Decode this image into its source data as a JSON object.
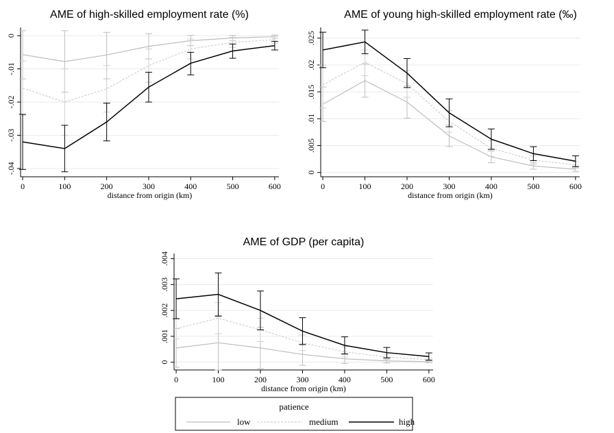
{
  "chart_data": [
    {
      "type": "line",
      "title": "AME of high-skilled employment rate (%)",
      "xlabel": "distance from origin (km)",
      "ylabel": "",
      "x": [
        0,
        100,
        200,
        300,
        400,
        500,
        600
      ],
      "xticks": [
        "0",
        "100",
        "200",
        "300",
        "400",
        "500",
        "600"
      ],
      "xlim": [
        -5,
        610
      ],
      "ylim": [
        -0.0425,
        0.0025
      ],
      "yticks": [
        0,
        -0.01,
        -0.02,
        -0.03,
        -0.04
      ],
      "ytick_labels": [
        "0",
        "-.01",
        "-.02",
        "-.03",
        "-.04"
      ],
      "grid": true,
      "series": [
        {
          "name": "low",
          "values": [
            -0.0057,
            -0.0078,
            -0.0058,
            -0.0032,
            -0.0015,
            -0.0007,
            -0.0003
          ],
          "ci_low": [
            -0.013,
            -0.017,
            -0.013,
            -0.007,
            -0.003,
            -0.0015,
            -0.0008
          ],
          "ci_high": [
            0.0015,
            0.0015,
            0.001,
            0.0006,
            0.0001,
            0.0001,
            0.0002
          ]
        },
        {
          "name": "medium",
          "values": [
            -0.0158,
            -0.02,
            -0.016,
            -0.009,
            -0.004,
            -0.002,
            -0.0012
          ],
          "ci_low": [
            -0.024,
            -0.03,
            -0.023,
            -0.014,
            -0.007,
            -0.0035,
            -0.0022
          ],
          "ci_high": [
            -0.0076,
            -0.01,
            -0.009,
            -0.004,
            -0.001,
            -0.0005,
            -0.0002
          ]
        },
        {
          "name": "high",
          "values": [
            -0.032,
            -0.034,
            -0.026,
            -0.0155,
            -0.0083,
            -0.0046,
            -0.003
          ],
          "ci_low": [
            -0.0403,
            -0.041,
            -0.0317,
            -0.02,
            -0.0118,
            -0.0068,
            -0.0043
          ],
          "ci_high": [
            -0.0237,
            -0.027,
            -0.0203,
            -0.011,
            -0.005,
            -0.0025,
            -0.0017
          ]
        }
      ]
    },
    {
      "type": "line",
      "title": "AME of young high-skilled employment rate (‰)",
      "xlabel": "distance from origin (km)",
      "ylabel": "",
      "x": [
        0,
        100,
        200,
        300,
        400,
        500,
        600
      ],
      "xticks": [
        "0",
        "100",
        "200",
        "300",
        "400",
        "500",
        "600"
      ],
      "xlim": [
        -5,
        610
      ],
      "ylim": [
        -0.0008,
        0.027
      ],
      "yticks": [
        0,
        0.005,
        0.01,
        0.015,
        0.02,
        0.025
      ],
      "ytick_labels": [
        "0",
        ".005",
        ".01",
        ".015",
        ".02",
        ".025"
      ],
      "grid": true,
      "series": [
        {
          "name": "low",
          "values": [
            0.0127,
            0.0171,
            0.0131,
            0.0068,
            0.0029,
            0.0012,
            0.0006
          ],
          "ci_low": [
            0.0095,
            0.014,
            0.0101,
            0.0048,
            0.0018,
            0.0006,
            0.0002
          ],
          "ci_high": [
            0.0159,
            0.0202,
            0.0161,
            0.0088,
            0.004,
            0.0018,
            0.001
          ]
        },
        {
          "name": "medium",
          "values": [
            0.0163,
            0.0205,
            0.0165,
            0.0095,
            0.0045,
            0.0023,
            0.0014
          ],
          "ci_low": [
            0.012,
            0.018,
            0.014,
            0.0075,
            0.003,
            0.0015,
            0.0008
          ],
          "ci_high": [
            0.02,
            0.0228,
            0.019,
            0.0115,
            0.006,
            0.0031,
            0.002
          ]
        },
        {
          "name": "high",
          "values": [
            0.0228,
            0.0243,
            0.0185,
            0.0111,
            0.0062,
            0.0035,
            0.0021
          ],
          "ci_low": [
            0.0195,
            0.0221,
            0.0158,
            0.0085,
            0.0043,
            0.0022,
            0.0011
          ],
          "ci_high": [
            0.0261,
            0.0265,
            0.0212,
            0.0137,
            0.0081,
            0.0048,
            0.0031
          ]
        }
      ]
    },
    {
      "type": "line",
      "title": "AME of GDP (per capita)",
      "xlabel": "distance from origin (km)",
      "ylabel": "",
      "x": [
        0,
        100,
        200,
        300,
        400,
        500,
        600
      ],
      "xticks": [
        "0",
        "100",
        "200",
        "300",
        "400",
        "500",
        "600"
      ],
      "xlim": [
        -5,
        610
      ],
      "ylim": [
        -0.0003,
        0.0042
      ],
      "yticks": [
        0,
        0.001,
        0.002,
        0.003,
        0.004
      ],
      "ytick_labels": [
        "0",
        ".001",
        ".002",
        ".003",
        ".004"
      ],
      "grid": true,
      "series": [
        {
          "name": "low",
          "values": [
            0.00055,
            0.00075,
            0.00055,
            0.0003,
            0.00013,
            5e-05,
            2e-05
          ],
          "ci_low": [
            -0.0002,
            -0.0003,
            -0.00025,
            -0.00012,
            -5e-05,
            -3e-05,
            -2e-05
          ],
          "ci_high": [
            0.0013,
            0.0018,
            0.00135,
            0.0007,
            0.0003,
            0.00013,
            6e-05
          ]
        },
        {
          "name": "medium",
          "values": [
            0.0013,
            0.0017,
            0.00125,
            0.00075,
            0.0004,
            0.0002,
            0.0001
          ],
          "ci_low": [
            0.0009,
            0.0011,
            0.0008,
            0.00045,
            0.0002,
            0.0001,
            4e-05
          ],
          "ci_high": [
            0.0017,
            0.0023,
            0.0017,
            0.00105,
            0.0006,
            0.0003,
            0.00016
          ]
        },
        {
          "name": "high",
          "values": [
            0.00245,
            0.00262,
            0.002,
            0.0012,
            0.00065,
            0.00037,
            0.00022
          ],
          "ci_low": [
            0.00168,
            0.00178,
            0.00125,
            0.00068,
            0.00032,
            0.00017,
            8e-05
          ],
          "ci_high": [
            0.00322,
            0.00345,
            0.00275,
            0.00172,
            0.00098,
            0.00057,
            0.00036
          ]
        }
      ]
    }
  ],
  "legend": {
    "title": "patience",
    "items": [
      {
        "label": "low",
        "color": "#bdbdbd",
        "dash": "solid"
      },
      {
        "label": "medium",
        "color": "#cfcfcf",
        "dash": "dotted"
      },
      {
        "label": "high",
        "color": "#000000",
        "dash": "solid"
      }
    ]
  },
  "colors": {
    "low": "#bdbdbd",
    "medium": "#cfcfcf",
    "high": "#000000",
    "grid": "#eaeaea"
  }
}
